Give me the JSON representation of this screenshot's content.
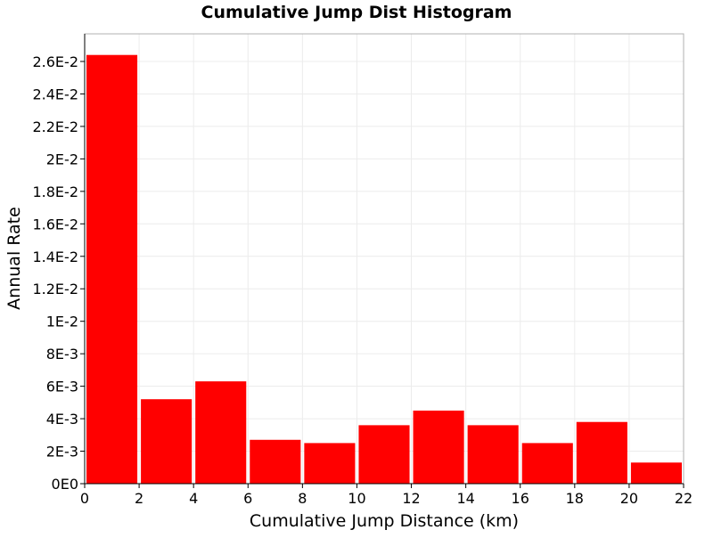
{
  "chart_data": {
    "type": "bar",
    "title": "Cumulative Jump Dist Histogram",
    "xlabel": "Cumulative Jump Distance (km)",
    "ylabel": "Annual Rate",
    "xlim": [
      0,
      22
    ],
    "ylim": [
      0,
      0.0277
    ],
    "grid": true,
    "bar_color": "#ff0000",
    "bin_width": 2,
    "bins": [
      {
        "x0": 0,
        "x1": 2,
        "value": 0.0264
      },
      {
        "x0": 2,
        "x1": 4,
        "value": 0.0052
      },
      {
        "x0": 4,
        "x1": 6,
        "value": 0.0063
      },
      {
        "x0": 6,
        "x1": 8,
        "value": 0.0027
      },
      {
        "x0": 8,
        "x1": 10,
        "value": 0.0025
      },
      {
        "x0": 10,
        "x1": 12,
        "value": 0.0036
      },
      {
        "x0": 12,
        "x1": 14,
        "value": 0.0045
      },
      {
        "x0": 14,
        "x1": 16,
        "value": 0.0036
      },
      {
        "x0": 16,
        "x1": 18,
        "value": 0.0025
      },
      {
        "x0": 18,
        "x1": 20,
        "value": 0.0038
      },
      {
        "x0": 20,
        "x1": 22,
        "value": 0.0013
      }
    ],
    "x_ticks": [
      {
        "value": 0,
        "label": "0"
      },
      {
        "value": 2,
        "label": "2"
      },
      {
        "value": 4,
        "label": "4"
      },
      {
        "value": 6,
        "label": "6"
      },
      {
        "value": 8,
        "label": "8"
      },
      {
        "value": 10,
        "label": "10"
      },
      {
        "value": 12,
        "label": "12"
      },
      {
        "value": 14,
        "label": "14"
      },
      {
        "value": 16,
        "label": "16"
      },
      {
        "value": 18,
        "label": "18"
      },
      {
        "value": 20,
        "label": "20"
      },
      {
        "value": 22,
        "label": "22"
      }
    ],
    "y_ticks": [
      {
        "value": 0,
        "label": "0E0"
      },
      {
        "value": 0.002,
        "label": "2E-3"
      },
      {
        "value": 0.004,
        "label": "4E-3"
      },
      {
        "value": 0.006,
        "label": "6E-3"
      },
      {
        "value": 0.008,
        "label": "8E-3"
      },
      {
        "value": 0.01,
        "label": "1E-2"
      },
      {
        "value": 0.012,
        "label": "1.2E-2"
      },
      {
        "value": 0.014,
        "label": "1.4E-2"
      },
      {
        "value": 0.016,
        "label": "1.6E-2"
      },
      {
        "value": 0.018,
        "label": "1.8E-2"
      },
      {
        "value": 0.02,
        "label": "2E-2"
      },
      {
        "value": 0.022,
        "label": "2.2E-2"
      },
      {
        "value": 0.024,
        "label": "2.4E-2"
      },
      {
        "value": 0.026,
        "label": "2.6E-2"
      }
    ]
  }
}
